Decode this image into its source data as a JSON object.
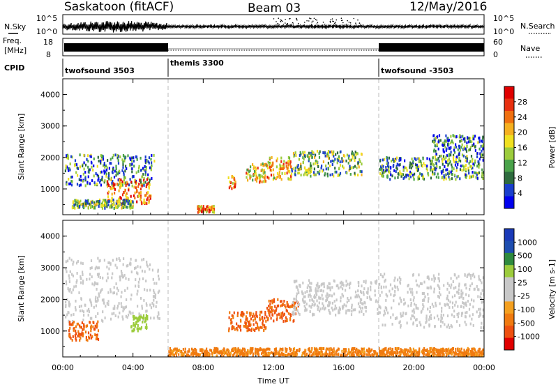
{
  "header": {
    "station": "Saskatoon (fitACF)",
    "beam": "Beam 03",
    "date": "12/May/2016"
  },
  "panels": {
    "nsky_label": "N.Sky",
    "nsearch_label": "N.Search",
    "freq_label_1": "Freq.",
    "freq_label_2": "[MHz]",
    "nave_label": "Nave",
    "cpid_label": "CPID",
    "nsky_ticks": [
      "10^5",
      "10^0"
    ],
    "nsearch_ticks": [
      "10^5",
      "10^0"
    ],
    "freq_ticks": [
      "18",
      "8"
    ],
    "nave_ticks": [
      "60",
      "0"
    ]
  },
  "cpid_segments": [
    {
      "label": "twofsound 3503",
      "start_hour": 0,
      "end_hour": 6
    },
    {
      "label": "themis 3300",
      "start_hour": 6,
      "end_hour": 18
    },
    {
      "label": "twofsound -3503",
      "start_hour": 18,
      "end_hour": 24
    }
  ],
  "colors": {
    "power": [
      "#0000ee",
      "#1a3fcc",
      "#2e6b3e",
      "#4aa24a",
      "#9ccc3c",
      "#f0e020",
      "#f5b020",
      "#f07010",
      "#e83010",
      "#e00000"
    ],
    "velocity": [
      "#e00000",
      "#ee5010",
      "#f07a10",
      "#f4a020",
      "#c8c8c8",
      "#c8c8c8",
      "#9ccc3c",
      "#2e8a3e",
      "#1e4eb0",
      "#1a3ab8"
    ],
    "ground_scatter": "#c8c8c8"
  },
  "chart_data": [
    {
      "type": "heatmap",
      "title": "Power",
      "colorbar_label": "Power [dB]",
      "colorbar_ticks": [
        "28",
        "24",
        "20",
        "16",
        "12",
        "8",
        "4"
      ],
      "colorbar_range": [
        0,
        32
      ],
      "ylabel": "Slant Range [km]",
      "yticks": [
        "1000",
        "2000",
        "3000",
        "4000"
      ],
      "ylim": [
        180,
        4500
      ],
      "xlim": [
        0,
        24
      ],
      "regions": [
        {
          "t0": 0.1,
          "t1": 5.2,
          "r0": 1100,
          "r1": 2100,
          "level": 10
        },
        {
          "t0": 2.5,
          "t1": 5.0,
          "r0": 500,
          "r1": 1300,
          "level": 26
        },
        {
          "t0": 0.5,
          "t1": 4.0,
          "r0": 380,
          "r1": 650,
          "level": 14
        },
        {
          "t0": 7.6,
          "t1": 8.6,
          "r0": 250,
          "r1": 450,
          "level": 24
        },
        {
          "t0": 9.4,
          "t1": 9.8,
          "r0": 1000,
          "r1": 1400,
          "level": 24
        },
        {
          "t0": 10.4,
          "t1": 11.6,
          "r0": 1200,
          "r1": 1800,
          "level": 20
        },
        {
          "t0": 11.6,
          "t1": 13.0,
          "r0": 1300,
          "r1": 2000,
          "level": 22
        },
        {
          "t0": 13.0,
          "t1": 17.0,
          "r0": 1400,
          "r1": 2200,
          "level": 14
        },
        {
          "t0": 18.0,
          "t1": 24.0,
          "r0": 1300,
          "r1": 2000,
          "level": 12
        },
        {
          "t0": 21.0,
          "t1": 24.0,
          "r0": 2000,
          "r1": 2700,
          "level": 10
        }
      ]
    },
    {
      "type": "heatmap",
      "title": "Velocity",
      "colorbar_label": "Velocity [m s-1]",
      "colorbar_ticks": [
        "1000",
        "500",
        "100",
        "25",
        "-25",
        "-100",
        "-500",
        "-1000"
      ],
      "colorbar_range": [
        -1200,
        1200
      ],
      "ylabel": "Slant Range [km]",
      "yticks": [
        "1000",
        "2000",
        "3000",
        "4000"
      ],
      "ylim": [
        180,
        4500
      ],
      "xlabel": "Time UT",
      "xticks": [
        "00:00",
        "04:00",
        "08:00",
        "12:00",
        "16:00",
        "20:00",
        "00:00"
      ],
      "xlim": [
        0,
        24
      ],
      "regions": [
        {
          "t0": 0.1,
          "t1": 5.5,
          "r0": 1300,
          "r1": 3300,
          "level": "gs"
        },
        {
          "t0": 3.8,
          "t1": 4.8,
          "r0": 1000,
          "r1": 1500,
          "level": 150
        },
        {
          "t0": 0.3,
          "t1": 2.0,
          "r0": 700,
          "r1": 1300,
          "level": -300
        },
        {
          "t0": 9.4,
          "t1": 11.6,
          "r0": 1000,
          "r1": 1600,
          "level": -300
        },
        {
          "t0": 11.6,
          "t1": 13.4,
          "r0": 1300,
          "r1": 2000,
          "level": -300
        },
        {
          "t0": 13.0,
          "t1": 18.0,
          "r0": 1500,
          "r1": 2600,
          "level": "gs"
        },
        {
          "t0": 18.0,
          "t1": 24.0,
          "r0": 1100,
          "r1": 2800,
          "level": "gs"
        },
        {
          "t0": 6.0,
          "t1": 24.0,
          "r0": 200,
          "r1": 450,
          "level": -80
        }
      ]
    }
  ]
}
